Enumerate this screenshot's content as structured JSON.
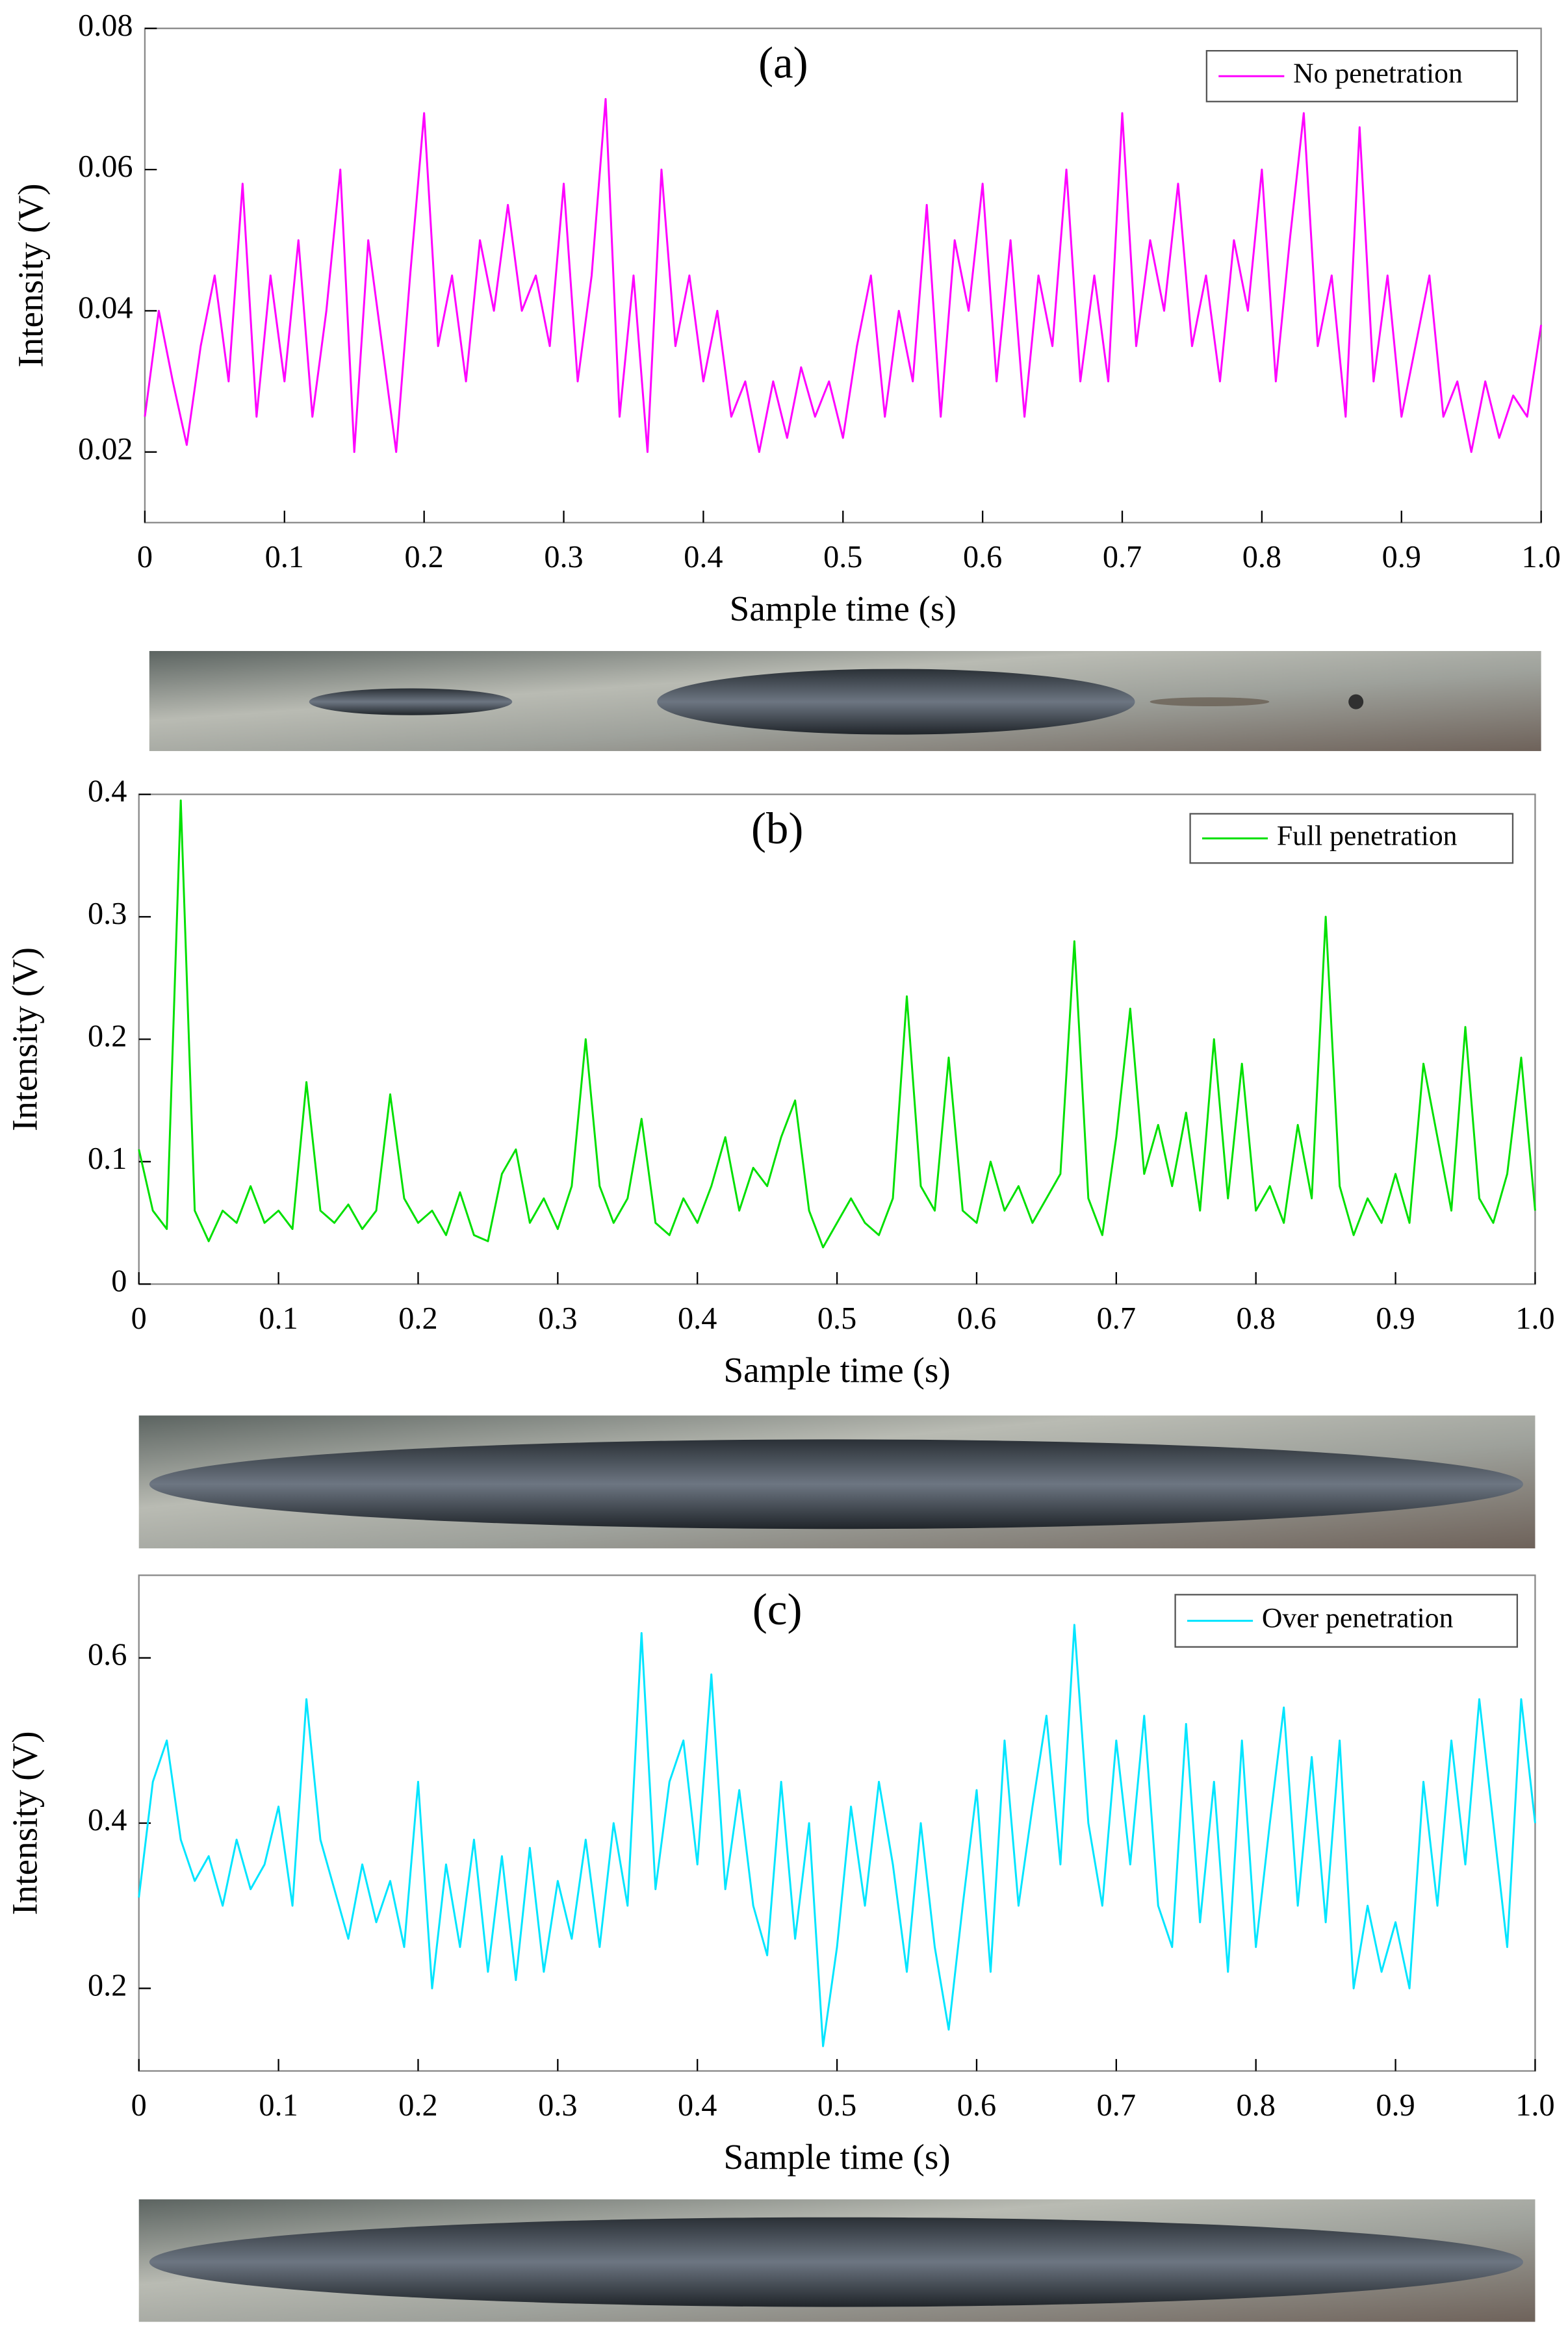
{
  "chart_data": [
    {
      "type": "line",
      "title": "(a)",
      "xlabel": "Sample time (s)",
      "ylabel": "Intensity (V)",
      "legend": "upper right",
      "xlim": [
        0,
        1
      ],
      "xticks": [
        0,
        0.1,
        0.2,
        0.3,
        0.4,
        0.5,
        0.6,
        0.7,
        0.8,
        0.9,
        {
          "value": 1,
          "label": "1.0"
        }
      ],
      "ylim": [
        0.01,
        0.08
      ],
      "yticks": [
        0.02,
        0.04,
        0.06,
        0.08
      ],
      "x": [
        0,
        0.01,
        0.02,
        0.03,
        0.04,
        0.05,
        0.06,
        0.07,
        0.08,
        0.09,
        0.1,
        0.11,
        0.12,
        0.13,
        0.14,
        0.15,
        0.16,
        0.17,
        0.18,
        0.19,
        0.2,
        0.21,
        0.22,
        0.23,
        0.24,
        0.25,
        0.26,
        0.27,
        0.28,
        0.29,
        0.3,
        0.31,
        0.32,
        0.33,
        0.34,
        0.35,
        0.36,
        0.37,
        0.38,
        0.39,
        0.4,
        0.41,
        0.42,
        0.43,
        0.44,
        0.45,
        0.46,
        0.47,
        0.48,
        0.49,
        0.5,
        0.51,
        0.52,
        0.53,
        0.54,
        0.55,
        0.56,
        0.57,
        0.58,
        0.59,
        0.6,
        0.61,
        0.62,
        0.63,
        0.64,
        0.65,
        0.66,
        0.67,
        0.68,
        0.69,
        0.7,
        0.71,
        0.72,
        0.73,
        0.74,
        0.75,
        0.76,
        0.77,
        0.78,
        0.79,
        0.8,
        0.81,
        0.82,
        0.83,
        0.84,
        0.85,
        0.86,
        0.87,
        0.88,
        0.89,
        0.9,
        0.91,
        0.92,
        0.93,
        0.94,
        0.95,
        0.96,
        0.97,
        0.98,
        0.99,
        1
      ],
      "series": [
        {
          "name": "No penetration",
          "color": "#ff00ff",
          "values": [
            0.025,
            0.04,
            0.03,
            0.021,
            0.035,
            0.045,
            0.03,
            0.058,
            0.025,
            0.045,
            0.03,
            0.05,
            0.025,
            0.04,
            0.06,
            0.02,
            0.05,
            0.035,
            0.02,
            0.045,
            0.068,
            0.035,
            0.045,
            0.03,
            0.05,
            0.04,
            0.055,
            0.04,
            0.045,
            0.035,
            0.058,
            0.03,
            0.045,
            0.07,
            0.025,
            0.045,
            0.02,
            0.06,
            0.035,
            0.045,
            0.03,
            0.04,
            0.025,
            0.03,
            0.02,
            0.03,
            0.022,
            0.032,
            0.025,
            0.03,
            0.022,
            0.035,
            0.045,
            0.025,
            0.04,
            0.03,
            0.055,
            0.025,
            0.05,
            0.04,
            0.058,
            0.03,
            0.05,
            0.025,
            0.045,
            0.035,
            0.06,
            0.03,
            0.045,
            0.03,
            0.068,
            0.035,
            0.05,
            0.04,
            0.058,
            0.035,
            0.045,
            0.03,
            0.05,
            0.04,
            0.06,
            0.03,
            0.05,
            0.068,
            0.035,
            0.045,
            0.025,
            0.066,
            0.03,
            0.045,
            0.025,
            0.035,
            0.045,
            0.025,
            0.03,
            0.02,
            0.03,
            0.022,
            0.028,
            0.025,
            0.038
          ]
        }
      ]
    },
    {
      "type": "line",
      "title": "(b)",
      "xlabel": "Sample time (s)",
      "ylabel": "Intensity (V)",
      "legend": "upper right",
      "xlim": [
        0,
        1
      ],
      "xticks": [
        0,
        0.1,
        0.2,
        0.3,
        0.4,
        0.5,
        0.6,
        0.7,
        0.8,
        0.9,
        {
          "value": 1,
          "label": "1.0"
        }
      ],
      "ylim": [
        0,
        0.4
      ],
      "yticks": [
        0,
        0.1,
        0.2,
        0.3,
        0.4
      ],
      "x": [
        0,
        0.01,
        0.02,
        0.03,
        0.04,
        0.05,
        0.06,
        0.07,
        0.08,
        0.09,
        0.1,
        0.11,
        0.12,
        0.13,
        0.14,
        0.15,
        0.16,
        0.17,
        0.18,
        0.19,
        0.2,
        0.21,
        0.22,
        0.23,
        0.24,
        0.25,
        0.26,
        0.27,
        0.28,
        0.29,
        0.3,
        0.31,
        0.32,
        0.33,
        0.34,
        0.35,
        0.36,
        0.37,
        0.38,
        0.39,
        0.4,
        0.41,
        0.42,
        0.43,
        0.44,
        0.45,
        0.46,
        0.47,
        0.48,
        0.49,
        0.5,
        0.51,
        0.52,
        0.53,
        0.54,
        0.55,
        0.56,
        0.57,
        0.58,
        0.59,
        0.6,
        0.61,
        0.62,
        0.63,
        0.64,
        0.65,
        0.66,
        0.67,
        0.68,
        0.69,
        0.7,
        0.71,
        0.72,
        0.73,
        0.74,
        0.75,
        0.76,
        0.77,
        0.78,
        0.79,
        0.8,
        0.81,
        0.82,
        0.83,
        0.84,
        0.85,
        0.86,
        0.87,
        0.88,
        0.89,
        0.9,
        0.91,
        0.92,
        0.93,
        0.94,
        0.95,
        0.96,
        0.97,
        0.98,
        0.99,
        1
      ],
      "series": [
        {
          "name": "Full penetration",
          "color": "#00e000",
          "values": [
            0.11,
            0.06,
            0.045,
            0.395,
            0.06,
            0.035,
            0.06,
            0.05,
            0.08,
            0.05,
            0.06,
            0.045,
            0.165,
            0.06,
            0.05,
            0.065,
            0.045,
            0.06,
            0.155,
            0.07,
            0.05,
            0.06,
            0.04,
            0.075,
            0.04,
            0.035,
            0.09,
            0.11,
            0.05,
            0.07,
            0.045,
            0.08,
            0.2,
            0.08,
            0.05,
            0.07,
            0.135,
            0.05,
            0.04,
            0.07,
            0.05,
            0.08,
            0.12,
            0.06,
            0.095,
            0.08,
            0.12,
            0.15,
            0.06,
            0.03,
            0.05,
            0.07,
            0.05,
            0.04,
            0.07,
            0.235,
            0.08,
            0.06,
            0.185,
            0.06,
            0.05,
            0.1,
            0.06,
            0.08,
            0.05,
            0.07,
            0.09,
            0.28,
            0.07,
            0.04,
            0.12,
            0.225,
            0.09,
            0.13,
            0.08,
            0.14,
            0.06,
            0.2,
            0.07,
            0.18,
            0.06,
            0.08,
            0.05,
            0.13,
            0.07,
            0.3,
            0.08,
            0.04,
            0.07,
            0.05,
            0.09,
            0.05,
            0.18,
            0.12,
            0.06,
            0.21,
            0.07,
            0.05,
            0.09,
            0.185,
            0.06
          ]
        }
      ]
    },
    {
      "type": "line",
      "title": "(c)",
      "xlabel": "Sample time (s)",
      "ylabel": "Intensity (V)",
      "legend": "upper right",
      "xlim": [
        0,
        1
      ],
      "xticks": [
        0,
        0.1,
        0.2,
        0.3,
        0.4,
        0.5,
        0.6,
        0.7,
        0.8,
        0.9,
        {
          "value": 1,
          "label": "1.0"
        }
      ],
      "ylim": [
        0.1,
        0.7
      ],
      "yticks": [
        0.2,
        0.4,
        0.6
      ],
      "x": [
        0,
        0.01,
        0.02,
        0.03,
        0.04,
        0.05,
        0.06,
        0.07,
        0.08,
        0.09,
        0.1,
        0.11,
        0.12,
        0.13,
        0.14,
        0.15,
        0.16,
        0.17,
        0.18,
        0.19,
        0.2,
        0.21,
        0.22,
        0.23,
        0.24,
        0.25,
        0.26,
        0.27,
        0.28,
        0.29,
        0.3,
        0.31,
        0.32,
        0.33,
        0.34,
        0.35,
        0.36,
        0.37,
        0.38,
        0.39,
        0.4,
        0.41,
        0.42,
        0.43,
        0.44,
        0.45,
        0.46,
        0.47,
        0.48,
        0.49,
        0.5,
        0.51,
        0.52,
        0.53,
        0.54,
        0.55,
        0.56,
        0.57,
        0.58,
        0.59,
        0.6,
        0.61,
        0.62,
        0.63,
        0.64,
        0.65,
        0.66,
        0.67,
        0.68,
        0.69,
        0.7,
        0.71,
        0.72,
        0.73,
        0.74,
        0.75,
        0.76,
        0.77,
        0.78,
        0.79,
        0.8,
        0.81,
        0.82,
        0.83,
        0.84,
        0.85,
        0.86,
        0.87,
        0.88,
        0.89,
        0.9,
        0.91,
        0.92,
        0.93,
        0.94,
        0.95,
        0.96,
        0.97,
        0.98,
        0.99,
        1
      ],
      "series": [
        {
          "name": "Over penetration",
          "color": "#00e5ff",
          "values": [
            0.31,
            0.45,
            0.5,
            0.38,
            0.33,
            0.36,
            0.3,
            0.38,
            0.32,
            0.35,
            0.42,
            0.3,
            0.55,
            0.38,
            0.32,
            0.26,
            0.35,
            0.28,
            0.33,
            0.25,
            0.45,
            0.2,
            0.35,
            0.25,
            0.38,
            0.22,
            0.36,
            0.21,
            0.37,
            0.22,
            0.33,
            0.26,
            0.38,
            0.25,
            0.4,
            0.3,
            0.63,
            0.32,
            0.45,
            0.5,
            0.35,
            0.58,
            0.32,
            0.44,
            0.3,
            0.24,
            0.45,
            0.26,
            0.4,
            0.13,
            0.25,
            0.42,
            0.3,
            0.45,
            0.35,
            0.22,
            0.4,
            0.25,
            0.15,
            0.3,
            0.44,
            0.22,
            0.5,
            0.3,
            0.42,
            0.53,
            0.35,
            0.64,
            0.4,
            0.3,
            0.5,
            0.35,
            0.53,
            0.3,
            0.25,
            0.52,
            0.28,
            0.45,
            0.22,
            0.5,
            0.25,
            0.4,
            0.54,
            0.3,
            0.48,
            0.28,
            0.5,
            0.2,
            0.3,
            0.22,
            0.28,
            0.2,
            0.45,
            0.3,
            0.5,
            0.35,
            0.55,
            0.4,
            0.25,
            0.55,
            0.4
          ]
        }
      ]
    }
  ]
}
